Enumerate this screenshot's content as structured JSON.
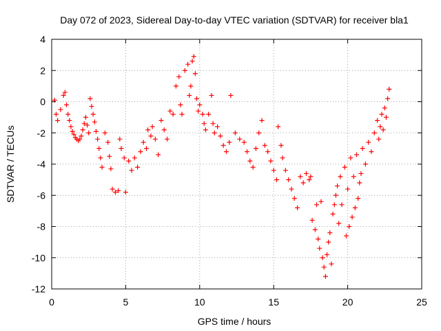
{
  "chart_data": {
    "type": "scatter",
    "title": "Day 072 of 2023, Sidereal Day-to-day VTEC variation (SDTVAR) for receiver bla1",
    "xlabel": "GPS time / hours",
    "ylabel": "SDTVAR / TECUs",
    "xlim": [
      0,
      25
    ],
    "ylim": [
      -12,
      4
    ],
    "xticks": [
      0,
      5,
      10,
      15,
      20,
      25
    ],
    "yticks": [
      -12,
      -10,
      -8,
      -6,
      -4,
      -2,
      0,
      2,
      4
    ],
    "grid": true,
    "marker": "+",
    "color": "#ff0000",
    "series": [
      {
        "name": "SDTVAR",
        "points": [
          [
            0.2,
            0.1
          ],
          [
            0.3,
            -0.8
          ],
          [
            0.4,
            -1.2
          ],
          [
            0.6,
            -0.5
          ],
          [
            0.8,
            0.4
          ],
          [
            0.9,
            0.6
          ],
          [
            1.0,
            -0.2
          ],
          [
            1.1,
            -0.8
          ],
          [
            1.2,
            -1.2
          ],
          [
            1.3,
            -1.6
          ],
          [
            1.4,
            -1.9
          ],
          [
            1.5,
            -2.1
          ],
          [
            1.6,
            -2.3
          ],
          [
            1.7,
            -2.4
          ],
          [
            1.8,
            -2.5
          ],
          [
            1.9,
            -2.4
          ],
          [
            2.0,
            -2.2
          ],
          [
            2.1,
            -1.8
          ],
          [
            2.2,
            -1.4
          ],
          [
            2.3,
            -1.0
          ],
          [
            2.4,
            -1.5
          ],
          [
            2.5,
            -2.0
          ],
          [
            2.6,
            0.2
          ],
          [
            2.7,
            -0.3
          ],
          [
            2.8,
            -0.8
          ],
          [
            2.9,
            -1.3
          ],
          [
            3.0,
            -1.9
          ],
          [
            3.1,
            -2.4
          ],
          [
            3.2,
            -3.0
          ],
          [
            3.3,
            -3.6
          ],
          [
            3.4,
            -4.2
          ],
          [
            3.6,
            -2.0
          ],
          [
            3.8,
            -2.6
          ],
          [
            3.9,
            -3.5
          ],
          [
            4.0,
            -4.3
          ],
          [
            4.1,
            -5.6
          ],
          [
            4.3,
            -5.8
          ],
          [
            4.5,
            -5.7
          ],
          [
            4.6,
            -2.4
          ],
          [
            4.7,
            -3.0
          ],
          [
            4.9,
            -3.6
          ],
          [
            5.0,
            -5.8
          ],
          [
            5.2,
            -3.8
          ],
          [
            5.4,
            -4.4
          ],
          [
            5.6,
            -3.6
          ],
          [
            5.8,
            -4.2
          ],
          [
            6.0,
            -3.2
          ],
          [
            6.2,
            -2.6
          ],
          [
            6.4,
            -3.0
          ],
          [
            6.5,
            -1.8
          ],
          [
            6.7,
            -2.2
          ],
          [
            6.8,
            -1.6
          ],
          [
            7.0,
            -2.4
          ],
          [
            7.2,
            -3.4
          ],
          [
            7.4,
            -1.2
          ],
          [
            7.6,
            -1.8
          ],
          [
            7.8,
            -2.4
          ],
          [
            8.0,
            -0.6
          ],
          [
            8.2,
            -0.8
          ],
          [
            8.4,
            1.0
          ],
          [
            8.6,
            1.6
          ],
          [
            8.7,
            -0.2
          ],
          [
            8.8,
            -0.8
          ],
          [
            9.0,
            2.0
          ],
          [
            9.2,
            2.4
          ],
          [
            9.3,
            0.4
          ],
          [
            9.4,
            1.0
          ],
          [
            9.5,
            2.6
          ],
          [
            9.6,
            2.9
          ],
          [
            9.7,
            1.8
          ],
          [
            9.8,
            0.2
          ],
          [
            9.9,
            -0.6
          ],
          [
            10.0,
            -0.2
          ],
          [
            10.2,
            -0.8
          ],
          [
            10.3,
            -1.4
          ],
          [
            10.4,
            -1.8
          ],
          [
            10.6,
            -0.8
          ],
          [
            10.8,
            0.4
          ],
          [
            10.9,
            -1.4
          ],
          [
            11.0,
            -2.0
          ],
          [
            11.2,
            -1.6
          ],
          [
            11.4,
            -2.2
          ],
          [
            11.6,
            -2.8
          ],
          [
            11.8,
            -3.2
          ],
          [
            12.0,
            -2.6
          ],
          [
            12.1,
            0.4
          ],
          [
            12.4,
            -2.0
          ],
          [
            12.7,
            -2.4
          ],
          [
            13.0,
            -2.6
          ],
          [
            13.2,
            -3.2
          ],
          [
            13.4,
            -3.8
          ],
          [
            13.6,
            -4.2
          ],
          [
            13.8,
            -3.0
          ],
          [
            14.0,
            -2.0
          ],
          [
            14.2,
            -1.2
          ],
          [
            14.4,
            -2.8
          ],
          [
            14.6,
            -3.2
          ],
          [
            14.8,
            -3.8
          ],
          [
            15.0,
            -4.4
          ],
          [
            15.2,
            -5.0
          ],
          [
            15.3,
            -1.6
          ],
          [
            15.5,
            -2.8
          ],
          [
            15.6,
            -3.6
          ],
          [
            15.8,
            -4.4
          ],
          [
            16.0,
            -5.0
          ],
          [
            16.2,
            -5.6
          ],
          [
            16.4,
            -6.2
          ],
          [
            16.6,
            -6.8
          ],
          [
            16.8,
            -4.8
          ],
          [
            17.0,
            -5.2
          ],
          [
            17.2,
            -4.6
          ],
          [
            17.4,
            -5.0
          ],
          [
            17.5,
            -4.8
          ],
          [
            17.6,
            -7.6
          ],
          [
            17.8,
            -8.2
          ],
          [
            17.9,
            -6.6
          ],
          [
            18.0,
            -8.8
          ],
          [
            18.1,
            -9.4
          ],
          [
            18.2,
            -6.4
          ],
          [
            18.3,
            -10.0
          ],
          [
            18.4,
            -10.6
          ],
          [
            18.5,
            -11.2
          ],
          [
            18.6,
            -9.8
          ],
          [
            18.7,
            -9.0
          ],
          [
            18.8,
            -8.4
          ],
          [
            18.9,
            -10.4
          ],
          [
            19.0,
            -7.2
          ],
          [
            19.1,
            -6.6
          ],
          [
            19.2,
            -6.0
          ],
          [
            19.3,
            -5.4
          ],
          [
            19.4,
            -7.8
          ],
          [
            19.5,
            -4.8
          ],
          [
            19.6,
            -6.6
          ],
          [
            19.8,
            -4.2
          ],
          [
            19.9,
            -8.6
          ],
          [
            20.0,
            -5.6
          ],
          [
            20.1,
            -8.0
          ],
          [
            20.2,
            -3.6
          ],
          [
            20.3,
            -7.4
          ],
          [
            20.4,
            -4.8
          ],
          [
            20.5,
            -6.8
          ],
          [
            20.6,
            -3.4
          ],
          [
            20.7,
            -6.2
          ],
          [
            20.8,
            -5.2
          ],
          [
            20.9,
            -4.6
          ],
          [
            21.0,
            -3.0
          ],
          [
            21.2,
            -4.0
          ],
          [
            21.4,
            -2.6
          ],
          [
            21.6,
            -3.2
          ],
          [
            21.8,
            -2.0
          ],
          [
            22.0,
            -1.2
          ],
          [
            22.1,
            -2.4
          ],
          [
            22.2,
            -1.6
          ],
          [
            22.3,
            -0.8
          ],
          [
            22.4,
            -1.8
          ],
          [
            22.5,
            -0.4
          ],
          [
            22.6,
            -1.0
          ],
          [
            22.7,
            0.2
          ],
          [
            22.8,
            0.8
          ]
        ]
      }
    ]
  }
}
